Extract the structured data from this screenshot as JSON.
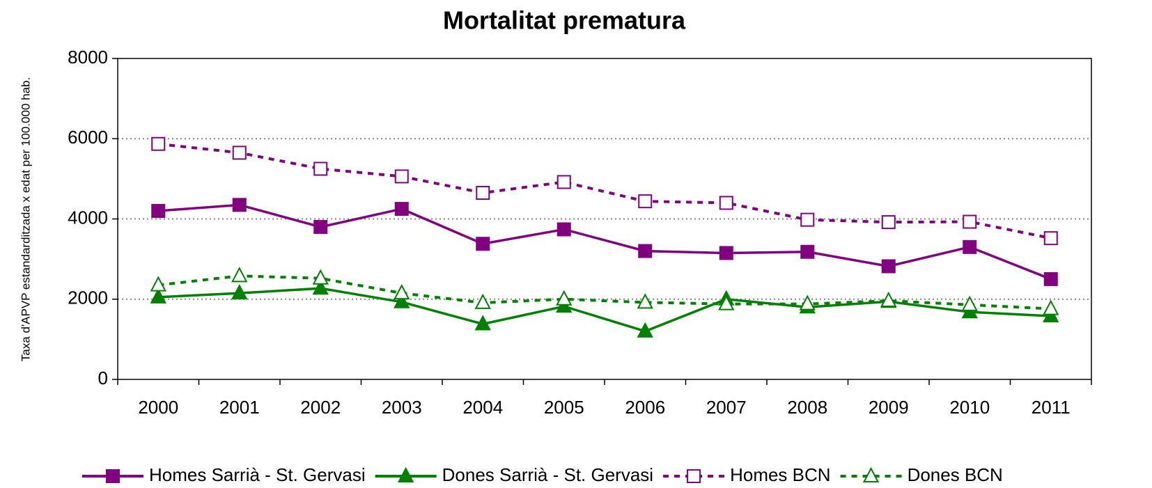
{
  "chart_data": {
    "type": "line",
    "title": "Mortalitat prematura",
    "y_label": "Taxa d'APVP estandarditzada x edat per 100.000 hab.",
    "categories": [
      "2000",
      "2001",
      "2002",
      "2003",
      "2004",
      "2005",
      "2006",
      "2007",
      "2008",
      "2009",
      "2010",
      "2011"
    ],
    "series": [
      {
        "name": "Homes Sarrià - St. Gervasi",
        "color": "#800080",
        "dashed": false,
        "marker": "square",
        "filled": true,
        "values": [
          4200,
          4350,
          3800,
          4250,
          3380,
          3740,
          3200,
          3150,
          3180,
          2820,
          3300,
          2500
        ]
      },
      {
        "name": "Dones Sarrià - St. Gervasi",
        "color": "#008000",
        "dashed": false,
        "marker": "triangle",
        "filled": true,
        "values": [
          2050,
          2150,
          2270,
          1930,
          1380,
          1820,
          1200,
          2000,
          1800,
          1940,
          1680,
          1580
        ]
      },
      {
        "name": "Homes BCN",
        "color": "#800080",
        "dashed": true,
        "marker": "square",
        "filled": false,
        "values": [
          5870,
          5650,
          5250,
          5060,
          4650,
          4920,
          4440,
          4400,
          3980,
          3920,
          3930,
          3520
        ]
      },
      {
        "name": "Dones BCN",
        "color": "#008000",
        "dashed": true,
        "marker": "triangle",
        "filled": false,
        "values": [
          2350,
          2580,
          2520,
          2150,
          1910,
          2000,
          1920,
          1880,
          1880,
          1960,
          1860,
          1760
        ]
      }
    ],
    "ylim": [
      0,
      8000
    ],
    "yticks": [
      0,
      2000,
      4000,
      6000,
      8000
    ],
    "grid": true,
    "legend": "bottom"
  }
}
